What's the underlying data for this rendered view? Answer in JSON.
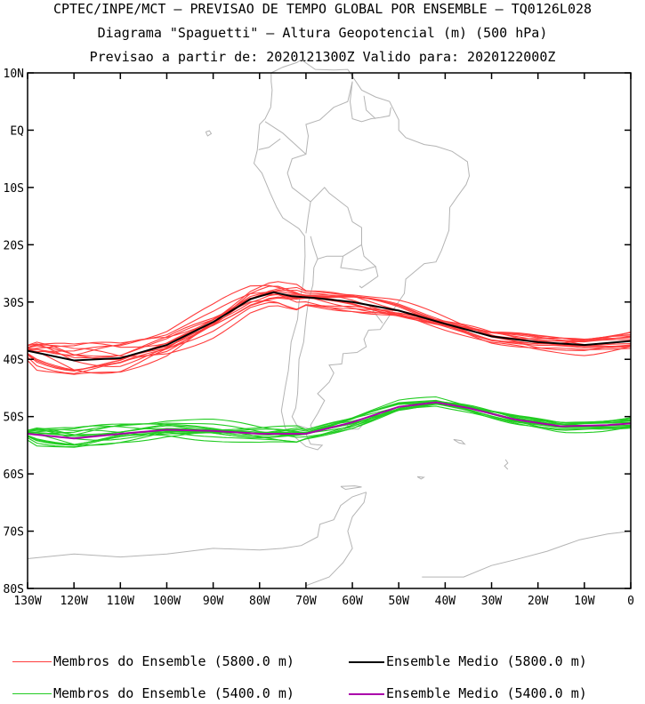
{
  "titles": {
    "line1": "CPTEC/INPE/MCT — PREVISAO DE TEMPO GLOBAL POR ENSEMBLE — TQ0126L028",
    "line2": "Diagrama \"Spaguetti\" — Altura Geopotencial (m) (500 hPa)",
    "line3": "Previsao a partir de: 2020121300Z  Valido para: 2020122000Z"
  },
  "legend": {
    "items": [
      {
        "label": "Membros do Ensemble (5800.0 m)",
        "color": "#ff3c3c"
      },
      {
        "label": "Ensemble Medio (5800.0 m)",
        "color": "#000000"
      },
      {
        "label": "Membros do Ensemble (5400.0 m)",
        "color": "#22cc22"
      },
      {
        "label": "Ensemble Medio (5400.0 m)",
        "color": "#aa00aa"
      }
    ]
  },
  "chart_data": {
    "type": "line",
    "x_ticks": [
      "130W",
      "120W",
      "110W",
      "100W",
      "90W",
      "80W",
      "70W",
      "60W",
      "50W",
      "40W",
      "30W",
      "20W",
      "10W",
      "0"
    ],
    "y_ticks": [
      "10N",
      "EQ",
      "10S",
      "20S",
      "30S",
      "40S",
      "50S",
      "60S",
      "70S",
      "80S"
    ],
    "xlim": [
      -130,
      0
    ],
    "ylim": [
      -80,
      10
    ],
    "x_units": "longitude (deg)",
    "y_units": "latitude (deg)",
    "map_color": "#b4b4b4",
    "series": [
      {
        "name": "Ensemble Medio (5800.0 m)",
        "color": "#000000",
        "lon": [
          -130,
          -120,
          -110,
          -100,
          -90,
          -82,
          -77,
          -73,
          -68,
          -60,
          -50,
          -40,
          -30,
          -20,
          -10,
          0
        ],
        "lat": [
          -38.5,
          -40.2,
          -39.8,
          -37.5,
          -33.5,
          -29.5,
          -28.3,
          -29.0,
          -29.3,
          -30.0,
          -31.5,
          -33.8,
          -36.0,
          -37.0,
          -37.5,
          -36.8
        ]
      },
      {
        "name": "Ensemble Medio (5400.0 m)",
        "color": "#aa00aa",
        "lon": [
          -130,
          -120,
          -110,
          -100,
          -90,
          -80,
          -70,
          -60,
          -50,
          -42,
          -35,
          -25,
          -15,
          -5,
          0
        ],
        "lat": [
          -53.0,
          -53.8,
          -53.0,
          -52.3,
          -52.5,
          -53.0,
          -53.0,
          -51.0,
          -48.3,
          -47.5,
          -48.5,
          -50.5,
          -51.7,
          -51.5,
          -51.2
        ]
      }
    ]
  }
}
